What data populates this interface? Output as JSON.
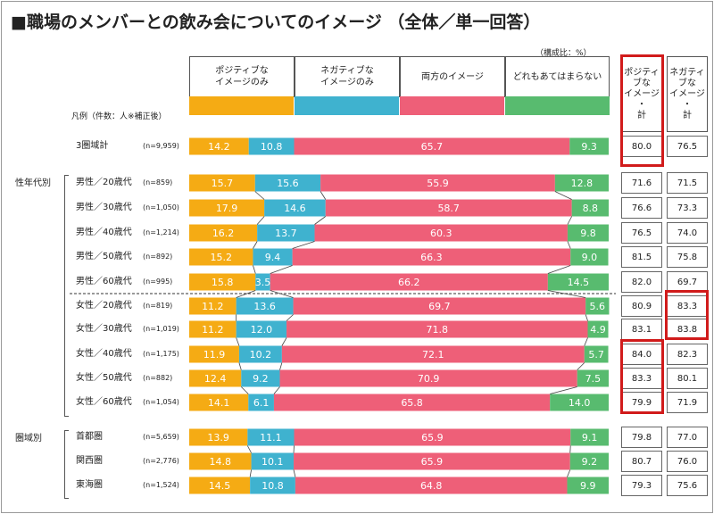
{
  "title": "■職場のメンバーとの飲み会についてのイメージ （全体／単一回答）",
  "unit_note": "（構成比：%）",
  "legend_label": "凡例（件数：人※補正後）",
  "colors": {
    "positive": "#f5ab14",
    "negative": "#3fb2cf",
    "both": "#ee5f78",
    "neither": "#58bb6f",
    "highlight": "#d11b1b"
  },
  "headers": [
    "ポジティブな\nイメージのみ",
    "ネガティブな\nイメージのみ",
    "両方のイメージ",
    "どれもあてはまらない"
  ],
  "summary_headers": [
    "ポジティ\nブな\nイメージ\n・\n計",
    "ネガティ\nブな\nイメージ\n・\n計"
  ],
  "groups": {
    "age": "性年代別",
    "region": "圏域別"
  },
  "chart_data": {
    "type": "bar",
    "stacked": true,
    "orientation": "horizontal",
    "xlim": [
      0,
      100
    ],
    "series": [
      {
        "name": "ポジティブなイメージのみ",
        "values": [
          14.2,
          15.7,
          17.9,
          16.2,
          15.2,
          15.8,
          11.2,
          11.2,
          11.9,
          12.4,
          14.1,
          13.9,
          14.8,
          14.5
        ]
      },
      {
        "name": "ネガティブなイメージのみ",
        "values": [
          10.8,
          15.6,
          14.6,
          13.7,
          9.4,
          3.5,
          13.6,
          12.0,
          10.2,
          9.2,
          6.1,
          11.1,
          10.1,
          10.8
        ]
      },
      {
        "name": "両方のイメージ",
        "values": [
          65.7,
          55.9,
          58.7,
          60.3,
          66.3,
          66.2,
          69.7,
          71.8,
          72.1,
          70.9,
          65.8,
          65.9,
          65.9,
          64.8
        ]
      },
      {
        "name": "どれもあてはまらない",
        "values": [
          9.3,
          12.8,
          8.8,
          9.8,
          9.0,
          14.5,
          5.6,
          4.9,
          5.7,
          7.5,
          14.0,
          9.1,
          9.2,
          9.9
        ]
      }
    ],
    "rows": [
      {
        "label": "3圏域計",
        "n": "(n=9,959)",
        "pos_total": "80.0",
        "neg_total": "76.5"
      },
      {
        "label": "男性／20歳代",
        "n": "(n=859)",
        "pos_total": "71.6",
        "neg_total": "71.5"
      },
      {
        "label": "男性／30歳代",
        "n": "(n=1,050)",
        "pos_total": "76.6",
        "neg_total": "73.3"
      },
      {
        "label": "男性／40歳代",
        "n": "(n=1,214)",
        "pos_total": "76.5",
        "neg_total": "74.0"
      },
      {
        "label": "男性／50歳代",
        "n": "(n=892)",
        "pos_total": "81.5",
        "neg_total": "75.8"
      },
      {
        "label": "男性／60歳代",
        "n": "(n=995)",
        "pos_total": "82.0",
        "neg_total": "69.7"
      },
      {
        "label": "女性／20歳代",
        "n": "(n=819)",
        "pos_total": "80.9",
        "neg_total": "83.3"
      },
      {
        "label": "女性／30歳代",
        "n": "(n=1,019)",
        "pos_total": "83.1",
        "neg_total": "83.8"
      },
      {
        "label": "女性／40歳代",
        "n": "(n=1,175)",
        "pos_total": "84.0",
        "neg_total": "82.3"
      },
      {
        "label": "女性／50歳代",
        "n": "(n=882)",
        "pos_total": "83.3",
        "neg_total": "80.1"
      },
      {
        "label": "女性／60歳代",
        "n": "(n=1,054)",
        "pos_total": "79.9",
        "neg_total": "71.9"
      },
      {
        "label": "首都圏",
        "n": "(n=5,659)",
        "pos_total": "79.8",
        "neg_total": "77.0"
      },
      {
        "label": "関西圏",
        "n": "(n=2,776)",
        "pos_total": "80.7",
        "neg_total": "76.0"
      },
      {
        "label": "東海圏",
        "n": "(n=1,524)",
        "pos_total": "79.3",
        "neg_total": "75.6"
      }
    ]
  }
}
